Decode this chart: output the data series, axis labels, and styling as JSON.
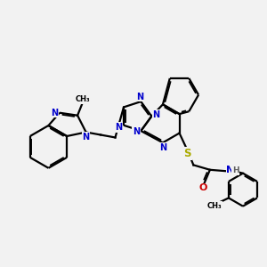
{
  "background_color": "#f2f2f2",
  "bond_color": "#000000",
  "nitrogen_color": "#0000cc",
  "oxygen_color": "#cc0000",
  "sulfur_color": "#aaaa00",
  "hydrogen_color": "#606060",
  "line_width": 1.6,
  "figsize": [
    3.0,
    3.0
  ],
  "dpi": 100,
  "xlim": [
    0,
    10
  ],
  "ylim": [
    0,
    10
  ]
}
